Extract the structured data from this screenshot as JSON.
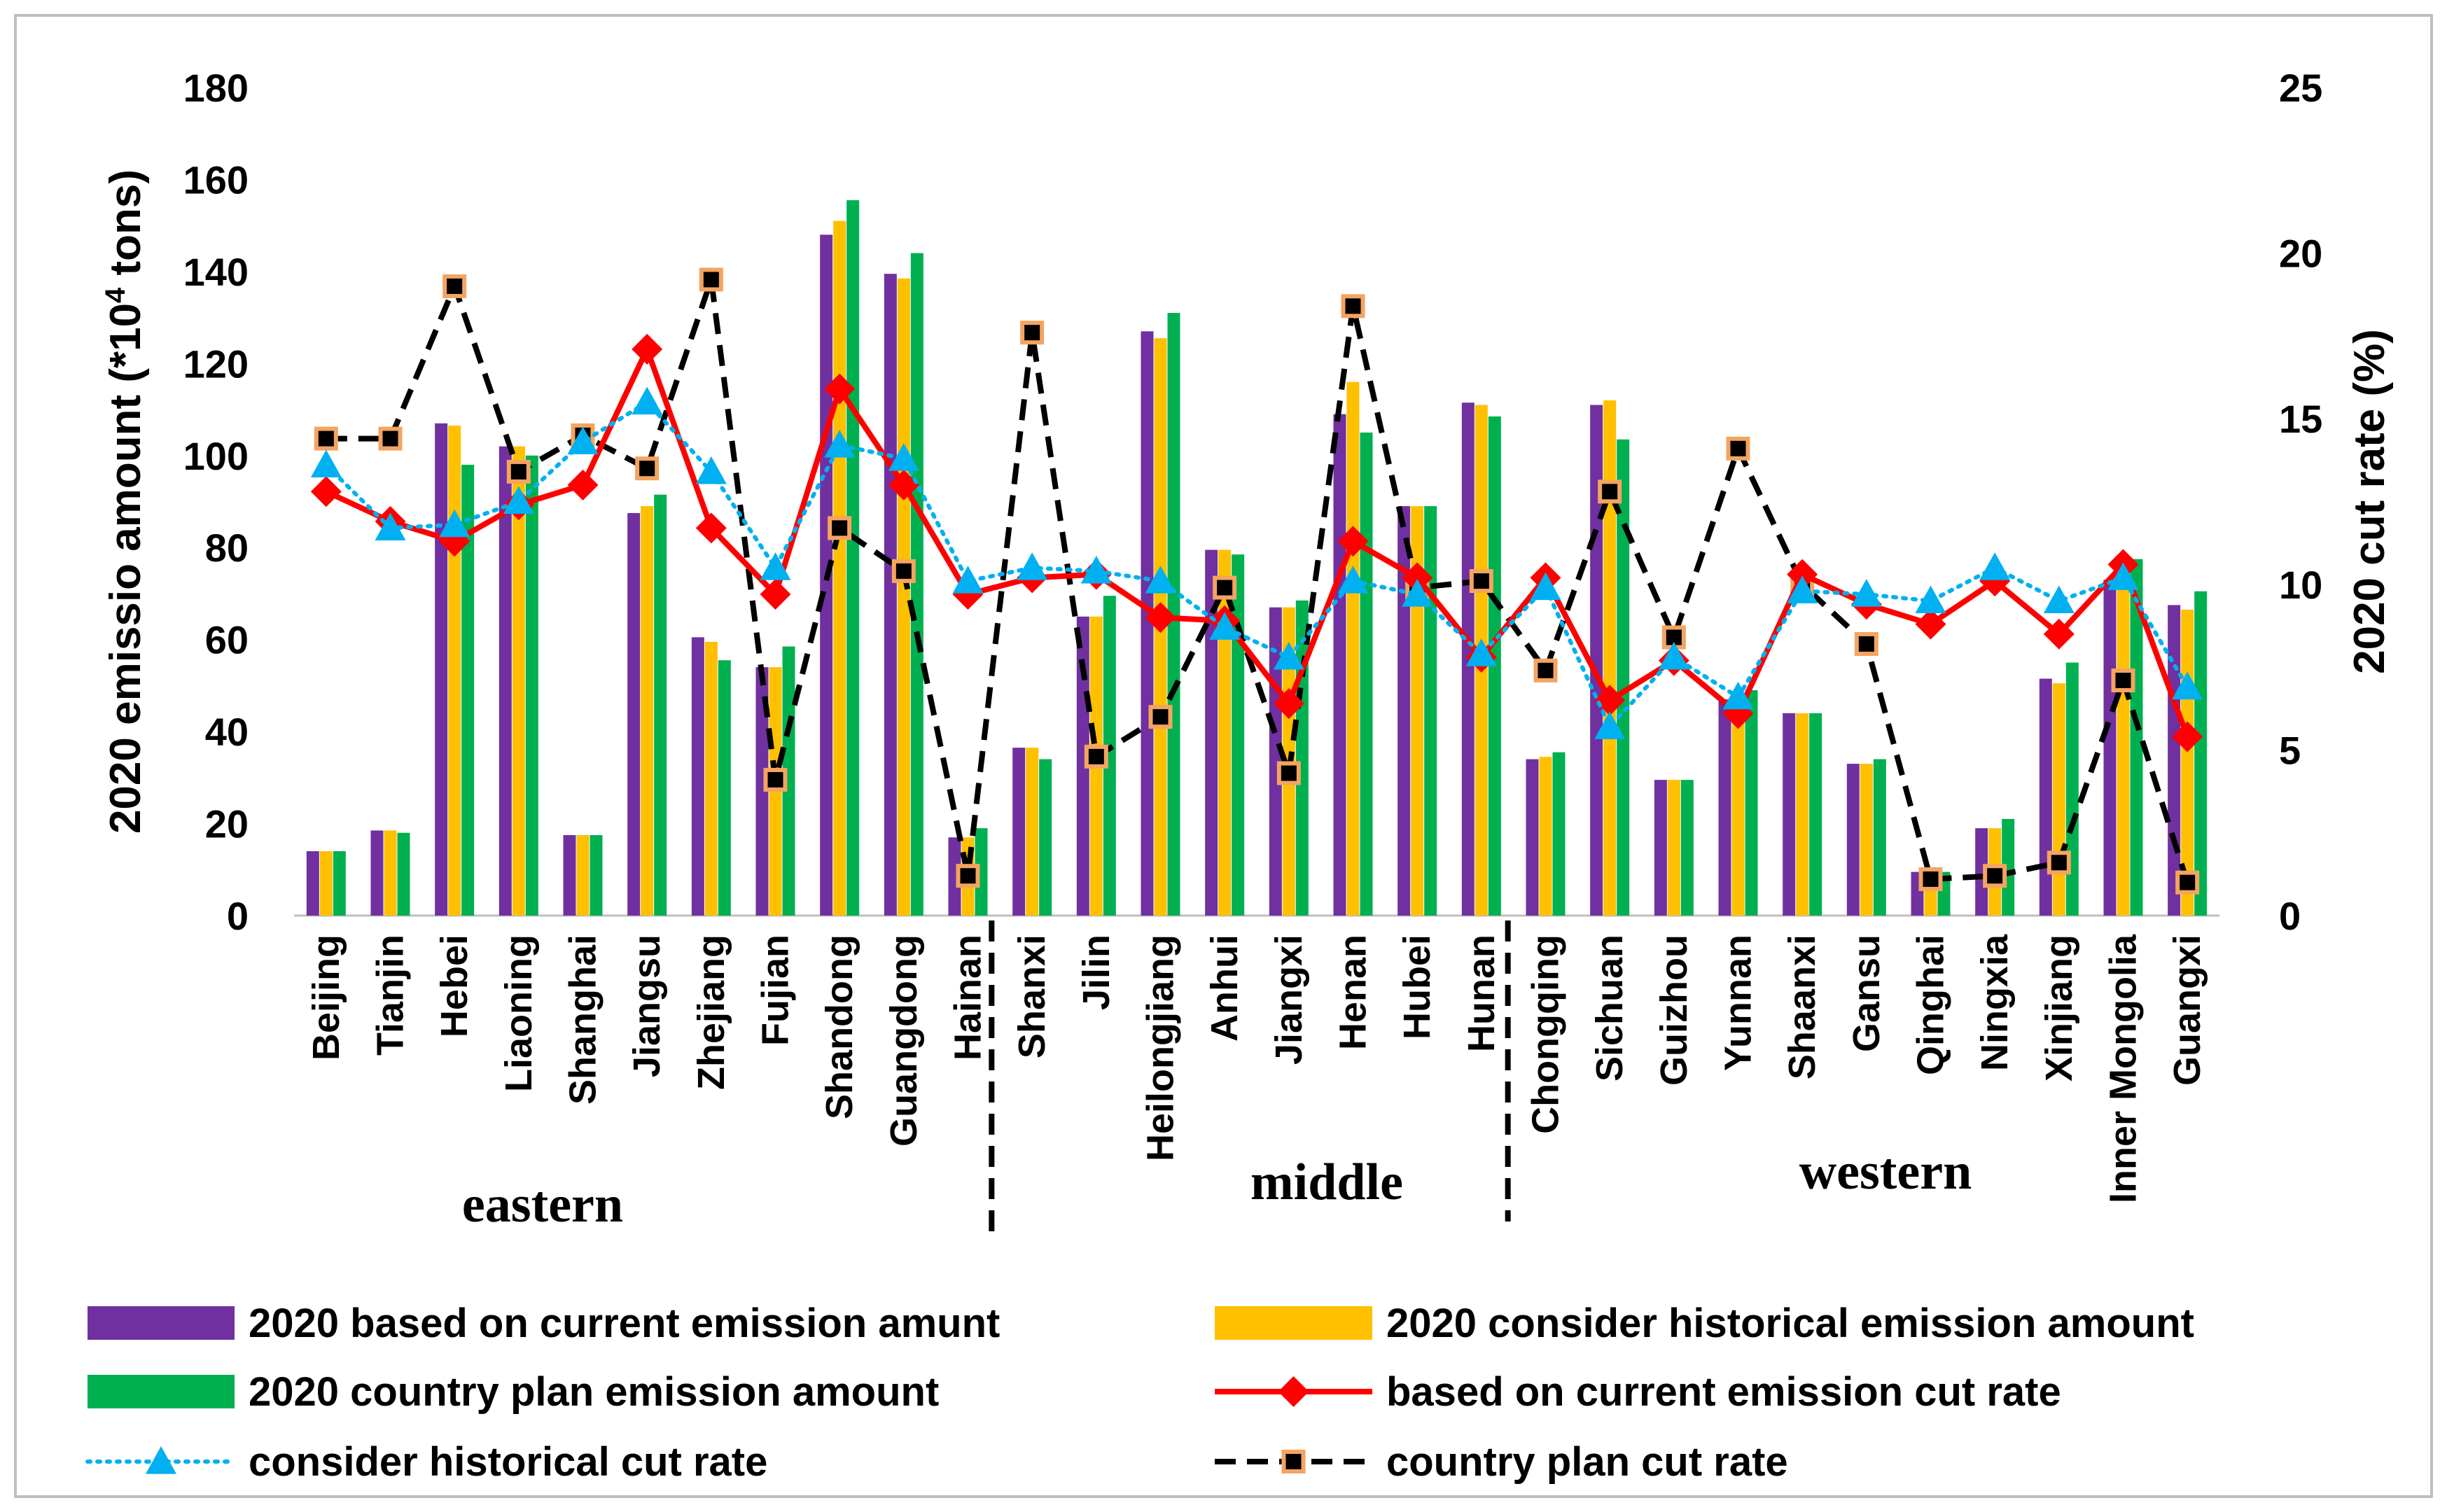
{
  "chart_data": {
    "type": "bar",
    "categories": [
      "Beijing",
      "Tianjin",
      "Hebei",
      "Liaoning",
      "Shanghai",
      "Jiangsu",
      "Zhejiang",
      "Fujian",
      "Shandong",
      "Guangdong",
      "Hainan",
      "Shanxi",
      "Jilin",
      "Heilongjiang",
      "Anhui",
      "Jiangxi",
      "Henan",
      "Hubei",
      "Hunan",
      "Chongqing",
      "Sichuan",
      "Guizhou",
      "Yunnan",
      "Shaanxi",
      "Gansu",
      "Qinghai",
      "Ningxia",
      "Xinjiang",
      "Inner Mongolia",
      "Guangxi"
    ],
    "ylabel": "2020 emissio amount (*10",
    "ylabel_sup": "4",
    "ylabel_tail": " tons)",
    "y2label": "2020 cut rate (%)",
    "ylim": [
      0,
      180
    ],
    "yticks": [
      "0",
      "20",
      "40",
      "60",
      "80",
      "100",
      "120",
      "140",
      "160",
      "180"
    ],
    "y2lim": [
      0,
      25
    ],
    "y2ticks": [
      "0",
      "5",
      "10",
      "15",
      "20",
      "25"
    ],
    "regions": [
      "eastern",
      "middle",
      "western"
    ],
    "series": [
      {
        "name": "2020 based on current emission amunt",
        "kind": "bar",
        "color": "#7030A0",
        "values": [
          14,
          18.5,
          107,
          102,
          17.5,
          87.5,
          60.5,
          54,
          148,
          139.5,
          17,
          36.5,
          65,
          127,
          79.5,
          67,
          109,
          89,
          111.5,
          34,
          111,
          29.5,
          47,
          44,
          33,
          9.5,
          19,
          51.5,
          73,
          67.5
        ]
      },
      {
        "name": "2020 consider historical emission amount",
        "kind": "bar",
        "color": "#FFC000",
        "values": [
          14,
          18.5,
          106.5,
          102,
          17.5,
          89,
          59.5,
          54,
          151,
          138.5,
          17,
          36.5,
          65,
          125.5,
          79.5,
          67,
          116,
          89,
          111,
          34.5,
          112,
          29.5,
          47,
          44,
          33,
          9.5,
          19,
          50.5,
          73,
          66.5
        ]
      },
      {
        "name": "2020 country plan emission amount",
        "kind": "bar",
        "color": "#00B050",
        "values": [
          14,
          18,
          98,
          100,
          17.5,
          91.5,
          55.5,
          58.5,
          155.5,
          144,
          19,
          34,
          69.5,
          131,
          78.5,
          68.5,
          105,
          89,
          108.5,
          35.5,
          103.5,
          29.5,
          49,
          44,
          34,
          9.5,
          21,
          55,
          77.5,
          70.5
        ]
      },
      {
        "name": "based on current emission cut rate",
        "kind": "line",
        "color": "#FF0000",
        "marker": "diamond",
        "values": [
          12.8,
          11.9,
          11.3,
          12.4,
          13,
          17.1,
          11.7,
          9.7,
          15.9,
          13,
          9.7,
          10.2,
          10.3,
          9,
          8.9,
          6.4,
          11.3,
          10.2,
          7.8,
          10.2,
          6.5,
          7.7,
          6.1,
          10.3,
          9.4,
          8.8,
          10.1,
          8.5,
          10.6,
          5.4
        ]
      },
      {
        "name": "consider historical cut rate",
        "kind": "line",
        "color": "#00B0F0",
        "marker": "triangle",
        "dash": "dot",
        "values": [
          13.6,
          11.7,
          11.8,
          12.5,
          14.3,
          15.5,
          13.4,
          10.5,
          14.2,
          13.8,
          10.1,
          10.5,
          10.4,
          10.1,
          8.7,
          7.8,
          10.1,
          9.7,
          7.9,
          9.9,
          5.7,
          7.8,
          6.6,
          9.8,
          9.7,
          9.5,
          10.5,
          9.5,
          10.2,
          6.9
        ]
      },
      {
        "name": "country plan cut rate",
        "kind": "line",
        "color": "#000000",
        "marker": "square",
        "markerFill": "#000000",
        "markerStroke": "#F4A460",
        "dash": "dash",
        "values": [
          14.4,
          14.4,
          19,
          13.4,
          14.5,
          13.5,
          19.2,
          4.1,
          11.7,
          10.4,
          1.2,
          17.6,
          4.8,
          6,
          9.9,
          4.3,
          18.4,
          9.9,
          10.1,
          7.4,
          12.8,
          8.4,
          14.1,
          10,
          8.2,
          1.1,
          1.2,
          1.6,
          7.1,
          1
        ]
      }
    ]
  },
  "legend": {
    "items": [
      "2020 based on current emission amunt",
      "2020 consider historical emission amount",
      "2020 country plan emission amount",
      "based on current emission cut rate",
      "consider historical cut rate",
      "country plan cut rate"
    ]
  }
}
